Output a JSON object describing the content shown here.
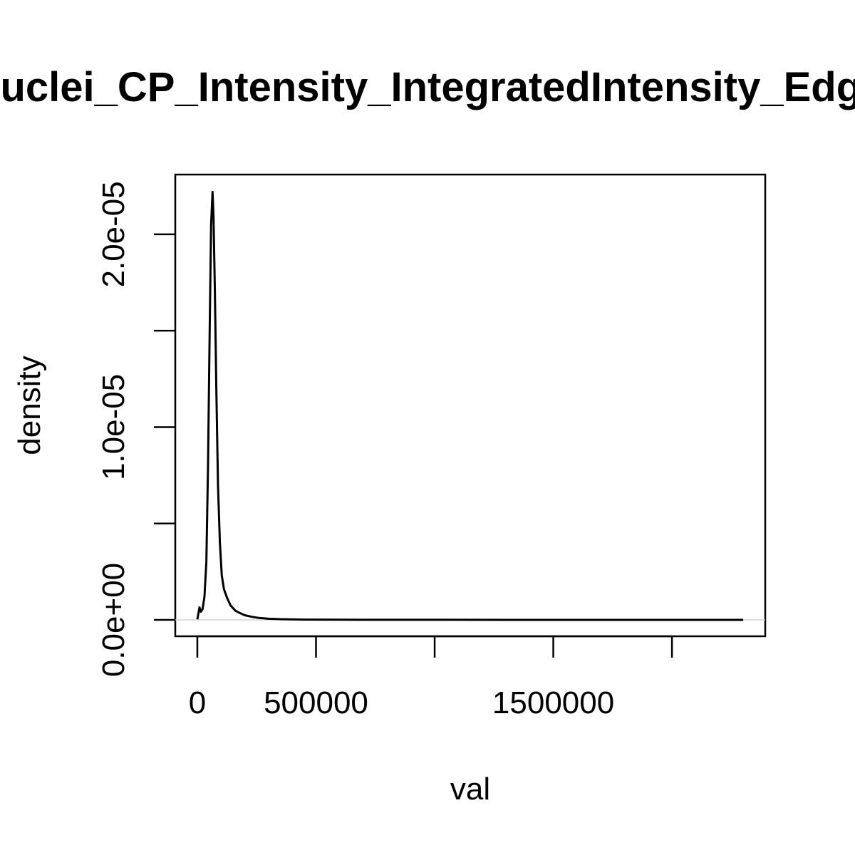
{
  "chart_data": {
    "type": "line",
    "title": "Nuclei_CP_Intensity_IntegratedIntensity_Edge",
    "xlabel": "val",
    "ylabel": "density",
    "xlim": [
      -93000,
      2393000
    ],
    "ylim": [
      -8.5e-07,
      2.31e-05
    ],
    "x_ticks": [
      0,
      500000,
      1000000,
      1500000,
      2000000
    ],
    "x_tick_labels": [
      "0",
      "500000",
      "",
      "1500000",
      ""
    ],
    "y_ticks": [
      0,
      5e-06,
      1e-05,
      1.5e-05,
      2e-05
    ],
    "y_tick_labels": [
      "0.0e+00",
      "",
      "1.0e-05",
      "",
      "2.0e-05"
    ],
    "baseline": 0,
    "grid": false,
    "series": [
      {
        "color": "#000000",
        "points": [
          [
            0,
            3e-08
          ],
          [
            4000,
            3e-07
          ],
          [
            9000,
            6.5e-07
          ],
          [
            15000,
            4.2e-07
          ],
          [
            22000,
            5.6e-07
          ],
          [
            30000,
            1.2e-06
          ],
          [
            38000,
            3e-06
          ],
          [
            45000,
            8e-06
          ],
          [
            52000,
            1.5e-05
          ],
          [
            58000,
            2.05e-05
          ],
          [
            64000,
            2.22e-05
          ],
          [
            68000,
            2.1e-05
          ],
          [
            74000,
            1.7e-05
          ],
          [
            80000,
            1.2e-05
          ],
          [
            87000,
            7e-06
          ],
          [
            95000,
            4e-06
          ],
          [
            103000,
            2.3e-06
          ],
          [
            112000,
            1.6e-06
          ],
          [
            125000,
            1.15e-06
          ],
          [
            140000,
            7.5e-07
          ],
          [
            160000,
            4.8e-07
          ],
          [
            180000,
            3.5e-07
          ],
          [
            200000,
            2.4e-07
          ],
          [
            230000,
            1.6e-07
          ],
          [
            260000,
            1e-07
          ],
          [
            300000,
            6e-08
          ],
          [
            350000,
            3.5e-08
          ],
          [
            450000,
            1.6e-08
          ],
          [
            600000,
            8e-09
          ],
          [
            900000,
            4e-09
          ],
          [
            1300000,
            2e-09
          ],
          [
            1800000,
            1e-09
          ],
          [
            2300000,
            0
          ]
        ]
      }
    ]
  }
}
